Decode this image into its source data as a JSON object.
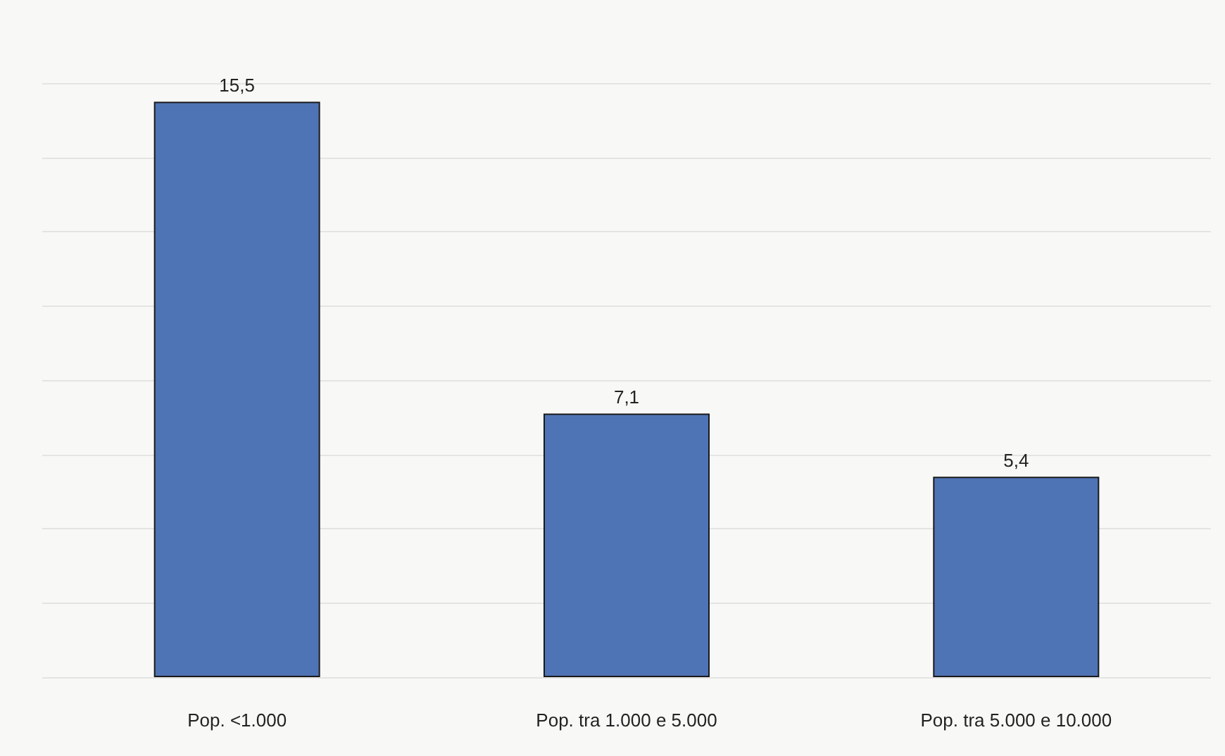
{
  "chart_data": {
    "type": "bar",
    "categories": [
      "Pop. <1.000",
      "Pop. tra 1.000 e 5.000",
      "Pop. tra 5.000 e 10.000"
    ],
    "values": [
      15.5,
      7.1,
      5.4
    ],
    "value_labels": [
      "15,5",
      "7,1",
      "5,4"
    ],
    "color": "#4f74b5",
    "ylim": [
      0,
      16
    ],
    "yticks": [
      {
        "value": 0,
        "label": null
      },
      {
        "value": 2,
        "label": null
      },
      {
        "value": 4,
        "label": null
      },
      {
        "value": 6,
        "label": null
      },
      {
        "value": 8,
        "label": null
      },
      {
        "value": 10,
        "label": null
      },
      {
        "value": 12,
        "label": null
      },
      {
        "value": 14,
        "label": null
      },
      {
        "value": 16,
        "label": null
      }
    ],
    "grid": "y",
    "tick_labels": "x"
  }
}
